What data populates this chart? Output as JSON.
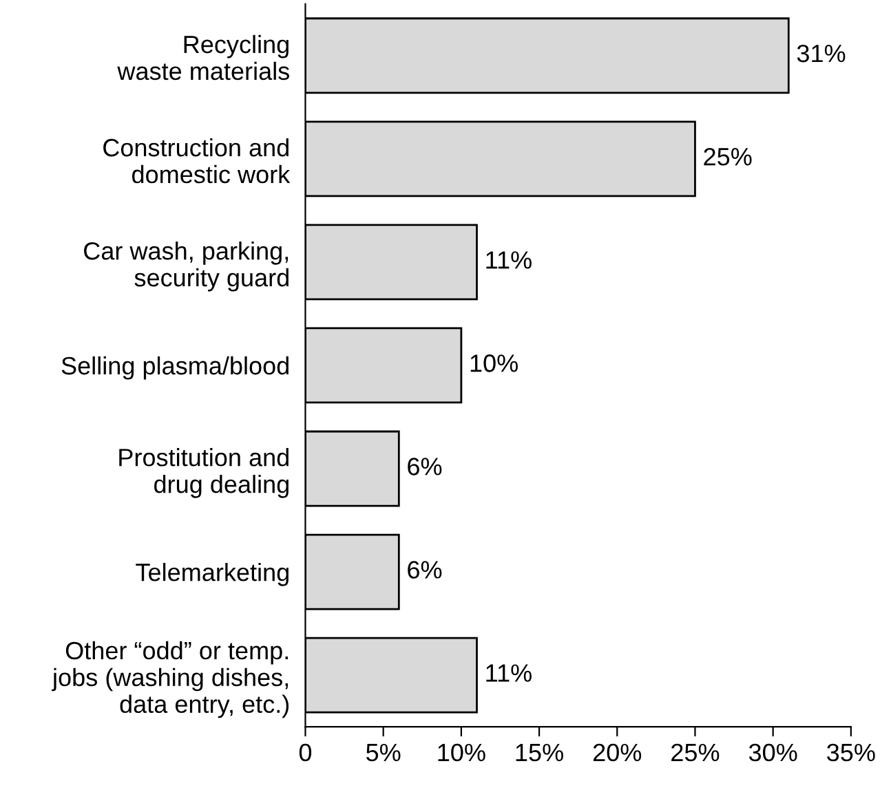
{
  "chart_data": {
    "type": "bar",
    "orientation": "horizontal",
    "categories": [
      "Recycling\nwaste materials",
      "Construction and\ndomestic work",
      "Car wash, parking,\nsecurity guard",
      "Selling plasma/blood",
      "Prostitution and\ndrug dealing",
      "Telemarketing",
      "Other “odd” or temp.\njobs (washing dishes,\ndata entry, etc.)"
    ],
    "values": [
      31,
      25,
      11,
      10,
      6,
      6,
      11
    ],
    "value_labels": [
      "31%",
      "25%",
      "11%",
      "10%",
      "6%",
      "6%",
      "11%"
    ],
    "color": "#d9d9d9",
    "xlim": [
      0,
      35
    ],
    "xticks": [
      0,
      {
        "value": 5,
        "label": "5%"
      },
      {
        "value": 10,
        "label": "10%"
      },
      {
        "value": 15,
        "label": "15%"
      },
      {
        "value": 20,
        "label": "20%"
      },
      {
        "value": 25,
        "label": "25%"
      },
      {
        "value": 30,
        "label": "30%"
      },
      {
        "value": 35,
        "label": "35%"
      }
    ],
    "grid": false,
    "legend": false
  }
}
